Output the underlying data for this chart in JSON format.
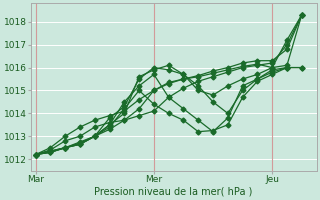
{
  "title": "",
  "xlabel": "Pression niveau de la mer( hPa )",
  "bg_color": "#cce8dd",
  "grid_color": "#ffffff",
  "line_color": "#1a6b2a",
  "ylim": [
    1011.5,
    1018.8
  ],
  "xlim": [
    -2,
    114
  ],
  "xtick_labels": [
    "Mar",
    "Mer",
    "Jeu"
  ],
  "xtick_positions": [
    0,
    48,
    96
  ],
  "ytick_values": [
    1012,
    1013,
    1014,
    1015,
    1016,
    1017,
    1018
  ],
  "lines": [
    {
      "x": [
        0,
        6,
        12,
        18,
        24,
        30,
        36,
        42,
        48,
        54,
        60,
        66,
        72,
        78,
        84,
        90,
        96,
        102,
        108
      ],
      "y": [
        1012.2,
        1012.35,
        1012.5,
        1012.75,
        1013.0,
        1013.3,
        1013.7,
        1014.2,
        1015.0,
        1015.3,
        1015.5,
        1015.6,
        1015.75,
        1015.9,
        1016.05,
        1016.15,
        1016.0,
        1017.2,
        1018.3
      ]
    },
    {
      "x": [
        0,
        6,
        12,
        18,
        24,
        30,
        36,
        42,
        48,
        54,
        60,
        66,
        72,
        78,
        84,
        90,
        96,
        102,
        108
      ],
      "y": [
        1012.2,
        1012.35,
        1012.5,
        1012.7,
        1013.0,
        1013.5,
        1014.0,
        1015.6,
        1015.9,
        1016.1,
        1015.7,
        1015.0,
        1014.8,
        1015.2,
        1015.5,
        1015.7,
        1016.0,
        1016.1,
        1018.3
      ]
    },
    {
      "x": [
        0,
        6,
        12,
        18,
        24,
        30,
        36,
        42,
        48,
        54,
        60,
        66,
        72,
        78,
        84,
        90,
        96,
        102,
        108
      ],
      "y": [
        1012.2,
        1012.3,
        1012.5,
        1012.65,
        1013.0,
        1013.8,
        1014.3,
        1015.5,
        1016.0,
        1015.9,
        1015.7,
        1015.2,
        1014.5,
        1014.0,
        1015.0,
        1015.5,
        1015.9,
        1016.0,
        1016.0
      ]
    },
    {
      "x": [
        0,
        6,
        12,
        18,
        24,
        30,
        36,
        42,
        48,
        54,
        60,
        66,
        72,
        78,
        84,
        90,
        96,
        102,
        108
      ],
      "y": [
        1012.2,
        1012.3,
        1012.5,
        1012.65,
        1013.0,
        1013.5,
        1014.5,
        1015.2,
        1015.7,
        1014.7,
        1014.2,
        1013.7,
        1013.2,
        1013.8,
        1015.2,
        1015.5,
        1015.8,
        1016.0,
        1016.0
      ]
    },
    {
      "x": [
        0,
        6,
        12,
        18,
        24,
        30,
        36,
        42,
        48,
        54,
        60,
        66,
        72,
        78,
        84,
        90,
        96,
        102
      ],
      "y": [
        1012.2,
        1012.3,
        1012.5,
        1012.65,
        1013.0,
        1013.4,
        1014.2,
        1015.0,
        1014.4,
        1014.0,
        1013.7,
        1013.2,
        1013.25,
        1013.5,
        1014.7,
        1015.4,
        1015.7,
        1016.0
      ]
    },
    {
      "x": [
        0,
        6,
        12,
        18,
        24,
        30,
        36,
        42,
        48,
        54,
        60,
        66,
        72,
        78,
        84,
        90,
        96,
        102,
        108
      ],
      "y": [
        1012.2,
        1012.4,
        1012.8,
        1013.0,
        1013.4,
        1013.6,
        1013.7,
        1013.9,
        1014.1,
        1014.7,
        1015.1,
        1015.4,
        1015.6,
        1015.8,
        1016.0,
        1016.1,
        1016.2,
        1017.0,
        1018.3
      ]
    },
    {
      "x": [
        0,
        6,
        12,
        18,
        24,
        30,
        36,
        42,
        48,
        54,
        60,
        66,
        72,
        78,
        84,
        90,
        96,
        102,
        108
      ],
      "y": [
        1012.2,
        1012.5,
        1013.0,
        1013.4,
        1013.7,
        1013.9,
        1014.1,
        1014.6,
        1015.0,
        1015.35,
        1015.5,
        1015.65,
        1015.85,
        1016.0,
        1016.2,
        1016.3,
        1016.3,
        1016.8,
        1018.3
      ]
    }
  ],
  "vline_positions": [
    0,
    48,
    96
  ],
  "marker_size": 2.5,
  "linewidth": 0.9
}
